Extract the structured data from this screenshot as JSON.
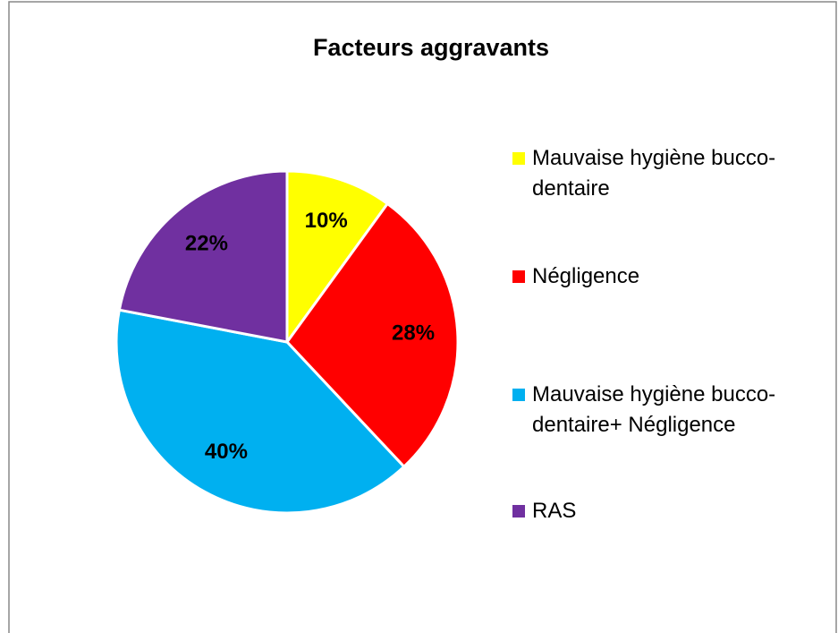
{
  "chart_data": {
    "type": "pie",
    "title": "Facteurs aggravants",
    "categories": [
      "Mauvaise hygiène bucco-dentaire",
      "Négligence",
      "Mauvaise hygiène bucco-dentaire+ Négligence",
      "RAS"
    ],
    "values": [
      10,
      28,
      40,
      22
    ],
    "value_labels": [
      "10%",
      "28%",
      "40%",
      "22%"
    ],
    "colors": [
      "#ffff00",
      "#ff0000",
      "#00b0f0",
      "#7030a0"
    ],
    "legend": "right"
  }
}
